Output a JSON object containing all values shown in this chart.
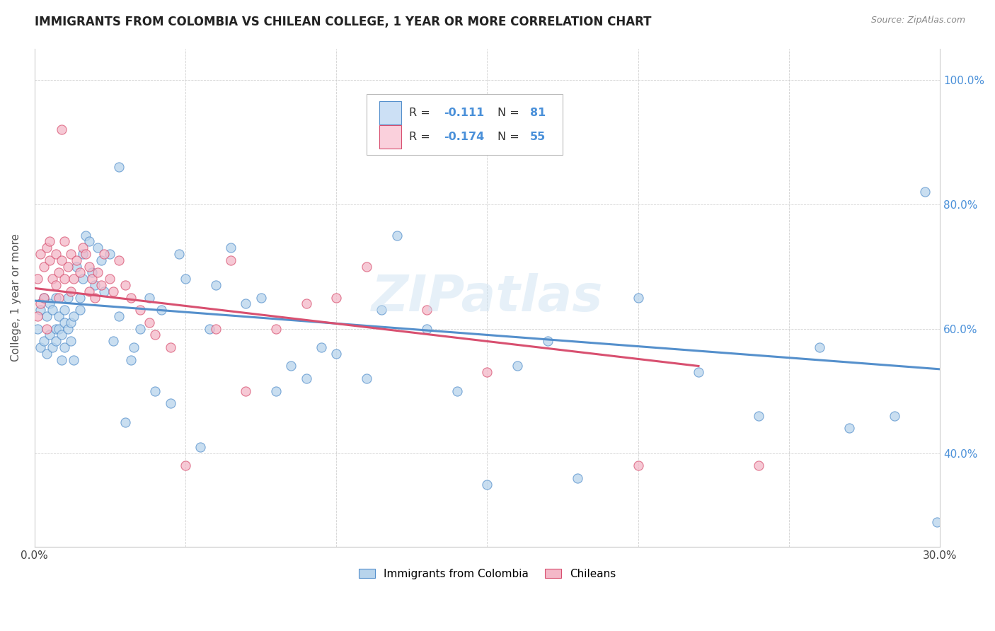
{
  "title": "IMMIGRANTS FROM COLOMBIA VS CHILEAN COLLEGE, 1 YEAR OR MORE CORRELATION CHART",
  "source": "Source: ZipAtlas.com",
  "ylabel": "College, 1 year or more",
  "x_min": 0.0,
  "x_max": 0.3,
  "y_min": 0.25,
  "y_max": 1.05,
  "x_tick_vals": [
    0.0,
    0.05,
    0.1,
    0.15,
    0.2,
    0.25,
    0.3
  ],
  "x_tick_labels": [
    "0.0%",
    "",
    "",
    "",
    "",
    "",
    "30.0%"
  ],
  "y_tick_vals": [
    0.4,
    0.6,
    0.8,
    1.0
  ],
  "y_tick_labels": [
    "40.0%",
    "60.0%",
    "80.0%",
    "100.0%"
  ],
  "blue_fill": "#b8d4ec",
  "pink_fill": "#f4b8c8",
  "blue_edge": "#5590cc",
  "pink_edge": "#d85070",
  "blue_line": "#5590cc",
  "pink_line": "#d85070",
  "legend_blue_fill": "#cce0f5",
  "legend_pink_fill": "#fad0dc",
  "R_blue": -0.111,
  "N_blue": 81,
  "R_pink": -0.174,
  "N_pink": 55,
  "watermark": "ZIPatlas",
  "legend1": "Immigrants from Colombia",
  "legend2": "Chileans",
  "blue_line_x0": 0.0,
  "blue_line_x1": 0.3,
  "blue_line_y0": 0.645,
  "blue_line_y1": 0.535,
  "pink_line_x0": 0.0,
  "pink_line_x1": 0.22,
  "pink_line_y0": 0.665,
  "pink_line_y1": 0.54,
  "blue_x": [
    0.001,
    0.002,
    0.002,
    0.003,
    0.003,
    0.004,
    0.004,
    0.005,
    0.005,
    0.006,
    0.006,
    0.007,
    0.007,
    0.007,
    0.008,
    0.008,
    0.009,
    0.009,
    0.01,
    0.01,
    0.01,
    0.011,
    0.011,
    0.012,
    0.012,
    0.013,
    0.013,
    0.014,
    0.015,
    0.015,
    0.016,
    0.016,
    0.017,
    0.018,
    0.019,
    0.02,
    0.021,
    0.022,
    0.023,
    0.025,
    0.026,
    0.028,
    0.03,
    0.032,
    0.033,
    0.035,
    0.038,
    0.04,
    0.042,
    0.045,
    0.048,
    0.05,
    0.055,
    0.058,
    0.06,
    0.065,
    0.07,
    0.075,
    0.08,
    0.085,
    0.09,
    0.095,
    0.1,
    0.11,
    0.115,
    0.12,
    0.13,
    0.14,
    0.15,
    0.16,
    0.17,
    0.18,
    0.2,
    0.22,
    0.24,
    0.26,
    0.27,
    0.285,
    0.295,
    0.299,
    0.028
  ],
  "blue_y": [
    0.6,
    0.63,
    0.57,
    0.65,
    0.58,
    0.62,
    0.56,
    0.64,
    0.59,
    0.63,
    0.57,
    0.6,
    0.65,
    0.58,
    0.62,
    0.6,
    0.59,
    0.55,
    0.63,
    0.61,
    0.57,
    0.6,
    0.65,
    0.61,
    0.58,
    0.62,
    0.55,
    0.7,
    0.65,
    0.63,
    0.72,
    0.68,
    0.75,
    0.74,
    0.69,
    0.67,
    0.73,
    0.71,
    0.66,
    0.72,
    0.58,
    0.62,
    0.45,
    0.55,
    0.57,
    0.6,
    0.65,
    0.5,
    0.63,
    0.48,
    0.72,
    0.68,
    0.41,
    0.6,
    0.67,
    0.73,
    0.64,
    0.65,
    0.5,
    0.54,
    0.52,
    0.57,
    0.56,
    0.52,
    0.63,
    0.75,
    0.6,
    0.5,
    0.35,
    0.54,
    0.58,
    0.36,
    0.65,
    0.53,
    0.46,
    0.57,
    0.44,
    0.46,
    0.82,
    0.29,
    0.86
  ],
  "pink_x": [
    0.001,
    0.001,
    0.002,
    0.002,
    0.003,
    0.003,
    0.004,
    0.004,
    0.005,
    0.005,
    0.006,
    0.007,
    0.007,
    0.008,
    0.008,
    0.009,
    0.01,
    0.01,
    0.011,
    0.012,
    0.012,
    0.013,
    0.014,
    0.015,
    0.016,
    0.017,
    0.018,
    0.018,
    0.019,
    0.02,
    0.021,
    0.022,
    0.023,
    0.025,
    0.026,
    0.028,
    0.03,
    0.032,
    0.035,
    0.038,
    0.04,
    0.045,
    0.05,
    0.06,
    0.065,
    0.07,
    0.08,
    0.09,
    0.1,
    0.11,
    0.13,
    0.15,
    0.2,
    0.24,
    0.009
  ],
  "pink_y": [
    0.68,
    0.62,
    0.72,
    0.64,
    0.7,
    0.65,
    0.73,
    0.6,
    0.71,
    0.74,
    0.68,
    0.67,
    0.72,
    0.69,
    0.65,
    0.71,
    0.68,
    0.74,
    0.7,
    0.72,
    0.66,
    0.68,
    0.71,
    0.69,
    0.73,
    0.72,
    0.66,
    0.7,
    0.68,
    0.65,
    0.69,
    0.67,
    0.72,
    0.68,
    0.66,
    0.71,
    0.67,
    0.65,
    0.63,
    0.61,
    0.59,
    0.57,
    0.38,
    0.6,
    0.71,
    0.5,
    0.6,
    0.64,
    0.65,
    0.7,
    0.63,
    0.53,
    0.38,
    0.38,
    0.92
  ]
}
